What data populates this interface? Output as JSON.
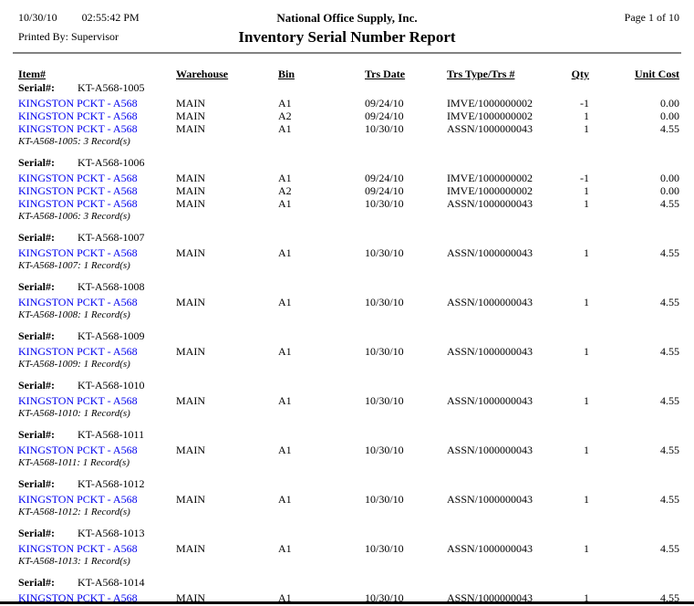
{
  "header": {
    "date": "10/30/10",
    "time": "02:55:42 PM",
    "company": "National Office Supply, Inc.",
    "page_label": "Page 1 of 10",
    "printed_by": "Printed By: Supervisor",
    "title": "Inventory Serial Number Report"
  },
  "columns": [
    "Item#",
    "Warehouse",
    "Bin",
    "Trs Date",
    "Trs Type/Trs #",
    "Qty",
    "Unit Cost"
  ],
  "serial_label": "Serial#:",
  "colors": {
    "link_blue": "#0000EE"
  },
  "groups": [
    {
      "serial": "KT-A568-1005",
      "rows": [
        {
          "item": "KINGSTON PCKT - A568",
          "warehouse": "MAIN",
          "bin": "A1",
          "trs_date": "09/24/10",
          "trs_type": "IMVE/1000000002",
          "qty": "-1",
          "unit_cost": "0.00"
        },
        {
          "item": "KINGSTON PCKT - A568",
          "warehouse": "MAIN",
          "bin": "A2",
          "trs_date": "09/24/10",
          "trs_type": "IMVE/1000000002",
          "qty": "1",
          "unit_cost": "0.00"
        },
        {
          "item": "KINGSTON PCKT - A568",
          "warehouse": "MAIN",
          "bin": "A1",
          "trs_date": "10/30/10",
          "trs_type": "ASSN/1000000043",
          "qty": "1",
          "unit_cost": "4.55"
        }
      ],
      "summary": "KT-A568-1005: 3 Record(s)"
    },
    {
      "serial": "KT-A568-1006",
      "rows": [
        {
          "item": "KINGSTON PCKT - A568",
          "warehouse": "MAIN",
          "bin": "A1",
          "trs_date": "09/24/10",
          "trs_type": "IMVE/1000000002",
          "qty": "-1",
          "unit_cost": "0.00"
        },
        {
          "item": "KINGSTON PCKT - A568",
          "warehouse": "MAIN",
          "bin": "A2",
          "trs_date": "09/24/10",
          "trs_type": "IMVE/1000000002",
          "qty": "1",
          "unit_cost": "0.00"
        },
        {
          "item": "KINGSTON PCKT - A568",
          "warehouse": "MAIN",
          "bin": "A1",
          "trs_date": "10/30/10",
          "trs_type": "ASSN/1000000043",
          "qty": "1",
          "unit_cost": "4.55"
        }
      ],
      "summary": "KT-A568-1006: 3 Record(s)"
    },
    {
      "serial": "KT-A568-1007",
      "rows": [
        {
          "item": "KINGSTON PCKT - A568",
          "warehouse": "MAIN",
          "bin": "A1",
          "trs_date": "10/30/10",
          "trs_type": "ASSN/1000000043",
          "qty": "1",
          "unit_cost": "4.55"
        }
      ],
      "summary": "KT-A568-1007: 1 Record(s)"
    },
    {
      "serial": "KT-A568-1008",
      "rows": [
        {
          "item": "KINGSTON PCKT - A568",
          "warehouse": "MAIN",
          "bin": "A1",
          "trs_date": "10/30/10",
          "trs_type": "ASSN/1000000043",
          "qty": "1",
          "unit_cost": "4.55"
        }
      ],
      "summary": "KT-A568-1008: 1 Record(s)"
    },
    {
      "serial": "KT-A568-1009",
      "rows": [
        {
          "item": "KINGSTON PCKT - A568",
          "warehouse": "MAIN",
          "bin": "A1",
          "trs_date": "10/30/10",
          "trs_type": "ASSN/1000000043",
          "qty": "1",
          "unit_cost": "4.55"
        }
      ],
      "summary": "KT-A568-1009: 1 Record(s)"
    },
    {
      "serial": "KT-A568-1010",
      "rows": [
        {
          "item": "KINGSTON PCKT - A568",
          "warehouse": "MAIN",
          "bin": "A1",
          "trs_date": "10/30/10",
          "trs_type": "ASSN/1000000043",
          "qty": "1",
          "unit_cost": "4.55"
        }
      ],
      "summary": "KT-A568-1010: 1 Record(s)"
    },
    {
      "serial": "KT-A568-1011",
      "rows": [
        {
          "item": "KINGSTON PCKT - A568",
          "warehouse": "MAIN",
          "bin": "A1",
          "trs_date": "10/30/10",
          "trs_type": "ASSN/1000000043",
          "qty": "1",
          "unit_cost": "4.55"
        }
      ],
      "summary": "KT-A568-1011: 1 Record(s)"
    },
    {
      "serial": "KT-A568-1012",
      "rows": [
        {
          "item": "KINGSTON PCKT - A568",
          "warehouse": "MAIN",
          "bin": "A1",
          "trs_date": "10/30/10",
          "trs_type": "ASSN/1000000043",
          "qty": "1",
          "unit_cost": "4.55"
        }
      ],
      "summary": "KT-A568-1012: 1 Record(s)"
    },
    {
      "serial": "KT-A568-1013",
      "rows": [
        {
          "item": "KINGSTON PCKT - A568",
          "warehouse": "MAIN",
          "bin": "A1",
          "trs_date": "10/30/10",
          "trs_type": "ASSN/1000000043",
          "qty": "1",
          "unit_cost": "4.55"
        }
      ],
      "summary": "KT-A568-1013: 1 Record(s)"
    },
    {
      "serial": "KT-A568-1014",
      "rows": [
        {
          "item": "KINGSTON PCKT - A568",
          "warehouse": "MAIN",
          "bin": "A1",
          "trs_date": "10/30/10",
          "trs_type": "ASSN/1000000043",
          "qty": "1",
          "unit_cost": "4.55"
        }
      ],
      "summary": null
    }
  ]
}
